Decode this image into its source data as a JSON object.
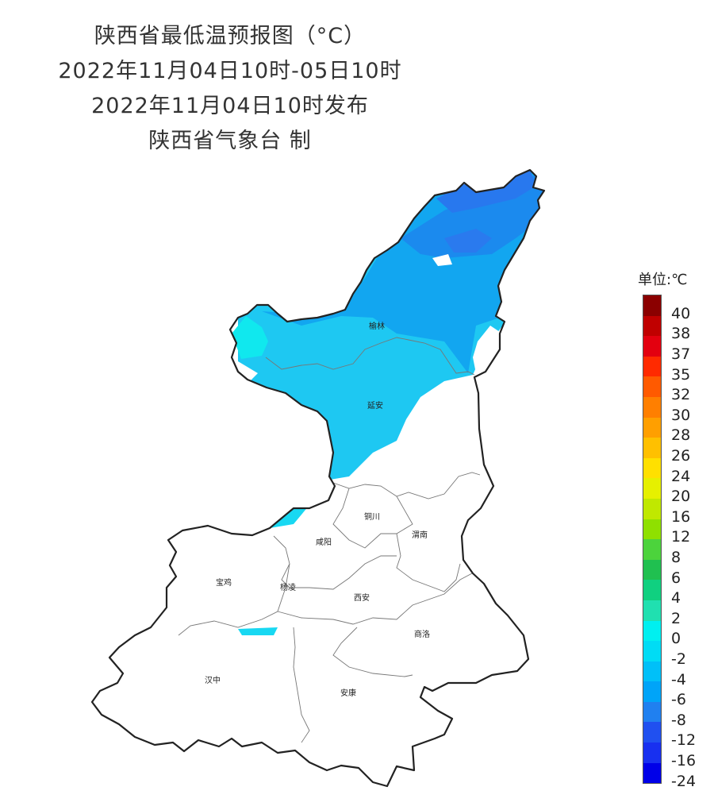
{
  "title": {
    "line1": "陕西省最低温预报图（°C）",
    "line2": "2022年11月04日10时-05日10时",
    "line3": "2022年11月04日10时发布",
    "line4": "陕西省气象台 制"
  },
  "cities": [
    {
      "name": "榆林"
    },
    {
      "name": "延安"
    },
    {
      "name": "铜川"
    },
    {
      "name": "渭南"
    },
    {
      "name": "咸阳"
    },
    {
      "name": "宝鸡"
    },
    {
      "name": "杨凌"
    },
    {
      "name": "西安"
    },
    {
      "name": "商洛"
    },
    {
      "name": "汉中"
    },
    {
      "name": "安康"
    }
  ],
  "legend": {
    "title": "单位:℃",
    "levels": [
      {
        "label": "40",
        "color": "#8b0000"
      },
      {
        "label": "38",
        "color": "#c00000"
      },
      {
        "label": "37",
        "color": "#e3000f"
      },
      {
        "label": "35",
        "color": "#ff2a00"
      },
      {
        "label": "32",
        "color": "#ff5a00"
      },
      {
        "label": "30",
        "color": "#ff7f00"
      },
      {
        "label": "28",
        "color": "#ff9f00"
      },
      {
        "label": "26",
        "color": "#ffc000"
      },
      {
        "label": "24",
        "color": "#ffe000"
      },
      {
        "label": "20",
        "color": "#e6f000"
      },
      {
        "label": "16",
        "color": "#c0e800"
      },
      {
        "label": "12",
        "color": "#8fe000"
      },
      {
        "label": "8",
        "color": "#4cd33c"
      },
      {
        "label": "6",
        "color": "#20c050"
      },
      {
        "label": "4",
        "color": "#10d080"
      },
      {
        "label": "2",
        "color": "#20e0b0"
      },
      {
        "label": "0",
        "color": "#00f0f0"
      },
      {
        "label": "-2",
        "color": "#00dcf5"
      },
      {
        "label": "-4",
        "color": "#00c0f8"
      },
      {
        "label": "-6",
        "color": "#00a4f8"
      },
      {
        "label": "-8",
        "color": "#2080f0"
      },
      {
        "label": "-12",
        "color": "#2050f0"
      },
      {
        "label": "-16",
        "color": "#1830f0"
      },
      {
        "label": "-24",
        "color": "#0000e8"
      }
    ]
  }
}
